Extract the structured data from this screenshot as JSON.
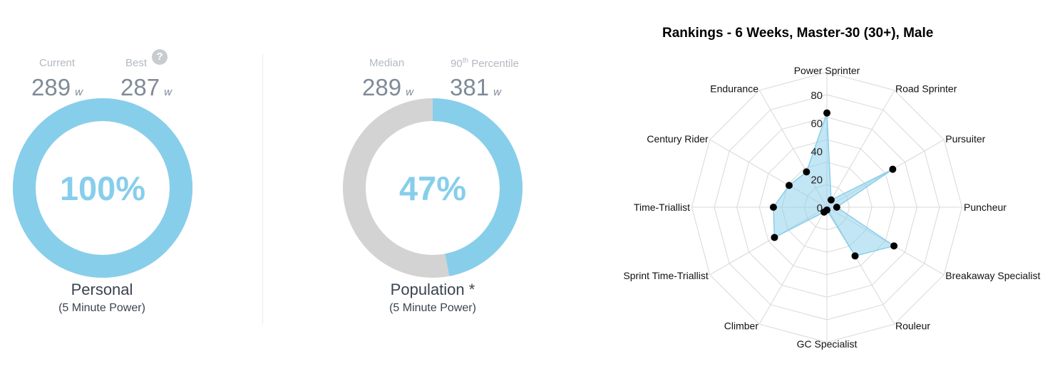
{
  "colors": {
    "accent": "#87ceeb",
    "track": "#d3d3d3",
    "muted_label": "#b3b9c0",
    "value_text": "#7e8b98",
    "dark_text": "#3a4450",
    "radar_fill": "#87ceeb",
    "radar_point": "#000000",
    "grid": "#d8d8d8"
  },
  "personal": {
    "current_label": "Current",
    "current_value": "289",
    "best_label": "Best",
    "best_value": "287",
    "unit": "w",
    "help_icon": "question-circle-icon",
    "percent": 100,
    "percent_label": "100%",
    "title": "Personal",
    "subtitle": "(5 Minute Power)"
  },
  "population": {
    "median_label": "Median",
    "median_value": "289",
    "p90_label_num": "90",
    "p90_label_sup": "th",
    "p90_label_rest": " Percentile",
    "p90_value": "381",
    "unit": "w",
    "percent": 47,
    "percent_label": "47%",
    "title": "Population *",
    "subtitle": "(5 Minute Power)"
  },
  "chart_data": {
    "type": "radar",
    "title": "Rankings - 6 Weeks, Master-30 (30+), Male",
    "categories": [
      "Power Sprinter",
      "Road Sprinter",
      "Pursuiter",
      "Puncheur",
      "Breakaway Specialist",
      "Rouleur",
      "GC Specialist",
      "Climber",
      "Sprint Time-Triallist",
      "Time-Triallist",
      "Century Rider",
      "Endurance"
    ],
    "values": [
      67,
      6,
      54,
      7,
      55,
      40,
      2,
      4,
      43,
      38,
      31,
      29
    ],
    "rlim": [
      0,
      80
    ],
    "ticks": [
      0,
      20,
      40,
      60,
      80
    ],
    "tick_labels": [
      "0",
      "20",
      "40",
      "60",
      "80"
    ],
    "grid": true
  }
}
